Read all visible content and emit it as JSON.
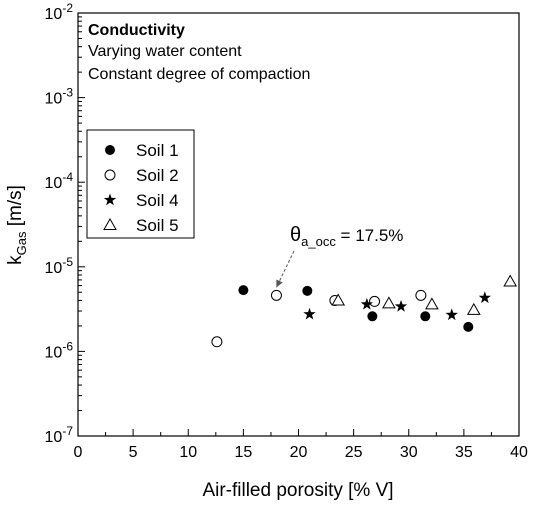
{
  "chart_data": {
    "type": "scatter",
    "y_scale": "log",
    "xlim": [
      0,
      40
    ],
    "ylim": [
      1e-07,
      0.01
    ],
    "x_ticks": [
      0,
      5,
      10,
      15,
      20,
      25,
      30,
      35,
      40
    ],
    "y_ticks": [
      {
        "value": 1e-07,
        "base": "10",
        "exp": "-7"
      },
      {
        "value": 1e-06,
        "base": "10",
        "exp": "-6"
      },
      {
        "value": 1e-05,
        "base": "10",
        "exp": "-5"
      },
      {
        "value": 0.0001,
        "base": "10",
        "exp": "-4"
      },
      {
        "value": 0.001,
        "base": "10",
        "exp": "-3"
      },
      {
        "value": 0.01,
        "base": "10",
        "exp": "-2"
      }
    ],
    "xlabel": "Air-filled porosity [% V]",
    "ylabel": {
      "main": "k",
      "sub": "Gas",
      "rest": " [m/s]"
    },
    "annotation": {
      "title": "Conductivity",
      "lines": [
        "Varying water content",
        "Constant degree of compaction"
      ]
    },
    "callout": {
      "symbol": "θ",
      "sub": "a_occ",
      "rest": " = 17.5%",
      "target": {
        "x": 18.0,
        "y": 4.6e-06
      }
    },
    "legend_position": "middle-left",
    "grid": false,
    "series": [
      {
        "name": "Soil 1",
        "marker": "filled-circle",
        "points": [
          [
            15.0,
            5.3e-06
          ],
          [
            20.8,
            5.2e-06
          ],
          [
            26.7,
            2.6e-06
          ],
          [
            31.5,
            2.6e-06
          ],
          [
            35.4,
            1.95e-06
          ]
        ]
      },
      {
        "name": "Soil 2",
        "marker": "open-circle",
        "points": [
          [
            12.6,
            1.3e-06
          ],
          [
            18.0,
            4.6e-06
          ],
          [
            23.3,
            4e-06
          ],
          [
            26.9,
            3.9e-06
          ],
          [
            31.1,
            4.6e-06
          ]
        ]
      },
      {
        "name": "Soil 4",
        "marker": "star",
        "points": [
          [
            21.0,
            2.75e-06
          ],
          [
            26.2,
            3.6e-06
          ],
          [
            29.3,
            3.4e-06
          ],
          [
            33.9,
            2.7e-06
          ],
          [
            36.9,
            4.3e-06
          ]
        ]
      },
      {
        "name": "Soil 5",
        "marker": "open-triangle",
        "points": [
          [
            23.6,
            4e-06
          ],
          [
            28.2,
            3.7e-06
          ],
          [
            32.1,
            3.6e-06
          ],
          [
            35.9,
            3.1e-06
          ],
          [
            39.2,
            6.7e-06
          ]
        ]
      }
    ]
  }
}
